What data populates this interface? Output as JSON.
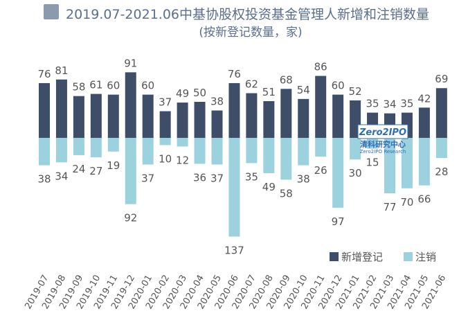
{
  "colors": {
    "new_registration": "#3f4e68",
    "cancellation": "#9cd2de",
    "value_text": "#555555",
    "title_text": "#5b6e8c",
    "title_box": "#8c9ab0",
    "watermark_blue": "#2f6db5"
  },
  "watermark": {
    "brand": "Zero2IPO",
    "cn": "清科研究中心",
    "en": "Zero2IPO Research"
  },
  "chart_data": {
    "type": "bar",
    "title": "2019.07-2021.06中基协股权投资基金管理人新增和注销数量",
    "subtitle": "(按新登记数量，家)",
    "xlabel": "",
    "ylabel": "",
    "legend_position": "bottom-right",
    "categories": [
      "2019-07",
      "2019-08",
      "2019-09",
      "2019-10",
      "2019-11",
      "2019-12",
      "2020-01",
      "2020-02",
      "2020-03",
      "2020-04",
      "2020-05",
      "2020-06",
      "2020-07",
      "2020-08",
      "2020-09",
      "2020-10",
      "2020-11",
      "2020-12",
      "2021-01",
      "2021-02",
      "2021-03",
      "2021-04",
      "2021-05",
      "2021-06"
    ],
    "series": [
      {
        "name": "新增登记",
        "direction": "up",
        "values": [
          76,
          81,
          58,
          61,
          60,
          91,
          60,
          37,
          49,
          50,
          38,
          76,
          62,
          51,
          68,
          54,
          86,
          60,
          52,
          35,
          34,
          35,
          42,
          69
        ]
      },
      {
        "name": "注销",
        "direction": "down",
        "values": [
          38,
          34,
          24,
          27,
          19,
          92,
          37,
          10,
          12,
          36,
          37,
          137,
          35,
          49,
          58,
          38,
          26,
          97,
          30,
          15,
          77,
          70,
          66,
          28
        ]
      }
    ]
  }
}
